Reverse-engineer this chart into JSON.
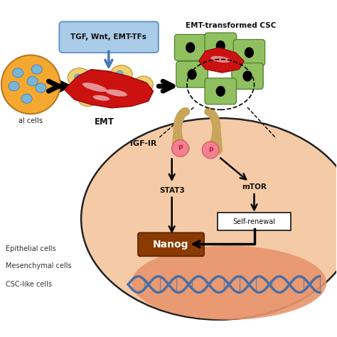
{
  "bg_color": "#ffffff",
  "cell_outer_color": "#f5a830",
  "cell_inner_color": "#fde68a",
  "blue_dot_color": "#7ab5d8",
  "red_cell_color": "#cc1111",
  "green_cell_color": "#90c060",
  "green_cell_border": "#508030",
  "large_ellipse_fill": "#f5cba7",
  "large_ellipse_edge": "#222222",
  "inner_ellipse_fill": "#e8956d",
  "receptor_color": "#c8a55a",
  "phospho_fill": "#f48090",
  "phospho_edge": "#d06070",
  "nanog_fill": "#8b3a00",
  "nanog_text": "#ffffff",
  "dna_color": "#4a6fa5",
  "tgf_fill": "#aacce8",
  "tgf_edge": "#6699cc",
  "tgf_arrow": "#4477bb",
  "legend_text": "#333333",
  "labels": {
    "tgf": "TGF, Wnt, EMT-TFs",
    "emt": "EMT",
    "emt_transformed": "EMT-transformed CSC",
    "epithelial": "Epithelial cells",
    "mesenchymal": "Mesenchymal cells",
    "csc": "CSC-like cells",
    "igf_ir": "IGF-IR",
    "stat3": "STAT3",
    "mtor": "mTOR",
    "nanog": "Nanog",
    "self_renewal": "Self-renewal",
    "p": "P",
    "al_cells": "al cells"
  }
}
